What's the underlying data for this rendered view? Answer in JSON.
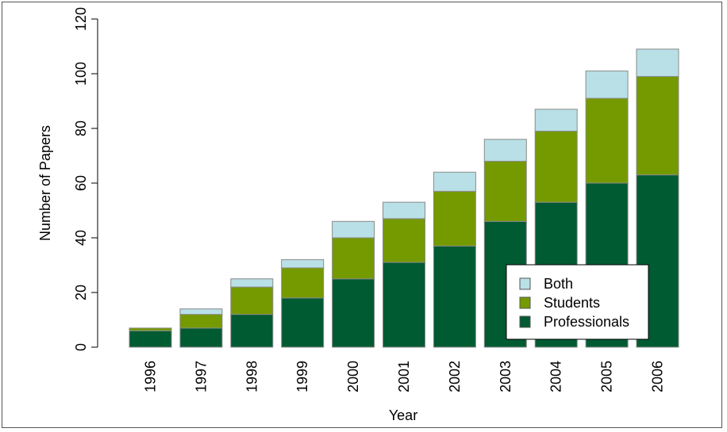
{
  "chart_data": {
    "type": "bar",
    "stacked": true,
    "xlabel": "Year",
    "ylabel": "Number of Papers",
    "ylim": [
      0,
      120
    ],
    "yticks": [
      0,
      20,
      40,
      60,
      80,
      100,
      120
    ],
    "grid": false,
    "legend_position": "bottom-right",
    "categories": [
      "1996",
      "1997",
      "1998",
      "1999",
      "2000",
      "2001",
      "2002",
      "2003",
      "2004",
      "2005",
      "2006"
    ],
    "series": [
      {
        "name": "Professionals",
        "color": "#005a32",
        "values": [
          6,
          7,
          12,
          18,
          25,
          31,
          37,
          46,
          53,
          60,
          63
        ]
      },
      {
        "name": "Students",
        "color": "#749a00",
        "values": [
          1,
          5,
          10,
          11,
          15,
          16,
          20,
          22,
          26,
          31,
          36
        ]
      },
      {
        "name": "Both",
        "color": "#b8e0e6",
        "values": [
          0,
          2,
          3,
          3,
          6,
          6,
          7,
          8,
          8,
          10,
          10
        ]
      }
    ],
    "legend_order": [
      "Both",
      "Students",
      "Professionals"
    ]
  }
}
